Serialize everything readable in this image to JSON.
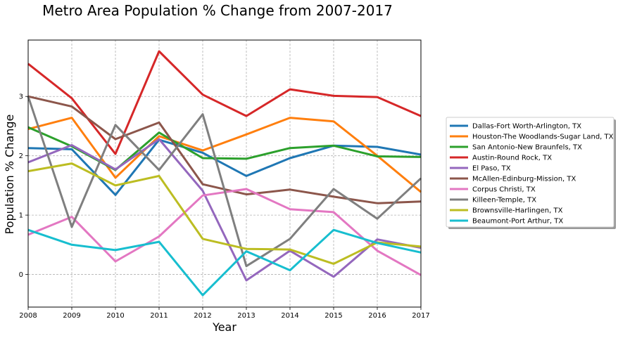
{
  "chart_data": {
    "type": "line",
    "title": "Metro Area Population % Change from 2007-2017",
    "xlabel": "Year",
    "ylabel": "Population % Change",
    "x": [
      2008,
      2009,
      2010,
      2011,
      2012,
      2013,
      2014,
      2015,
      2016,
      2017
    ],
    "x_ticks": [
      "2008",
      "2009",
      "2010",
      "2011",
      "2012",
      "2013",
      "2014",
      "2015",
      "2016",
      "2017"
    ],
    "y_ticks": [
      "0",
      "1",
      "2",
      "3"
    ],
    "xlim": [
      2008,
      2017
    ],
    "ylim": [
      -0.55,
      3.95
    ],
    "grid": true,
    "legend_position": "right",
    "series": [
      {
        "name": "Dallas-Fort Worth-Arlington, TX",
        "color": "#1f77b4",
        "values": [
          2.13,
          2.11,
          1.34,
          2.27,
          2.05,
          1.66,
          1.96,
          2.17,
          2.15,
          2.02
        ]
      },
      {
        "name": "Houston-The Woodlands-Sugar Land, TX",
        "color": "#ff7f0e",
        "values": [
          2.45,
          2.64,
          1.63,
          2.33,
          2.09,
          2.36,
          2.64,
          2.58,
          2.0,
          1.39
        ]
      },
      {
        "name": "San Antonio-New Braunfels, TX",
        "color": "#2ca02c",
        "values": [
          2.48,
          2.16,
          1.76,
          2.39,
          1.96,
          1.95,
          2.13,
          2.17,
          1.99,
          1.98
        ]
      },
      {
        "name": "Austin-Round Rock, TX",
        "color": "#d62728",
        "values": [
          3.55,
          2.97,
          2.03,
          3.76,
          3.03,
          2.67,
          3.12,
          3.01,
          2.99,
          2.67
        ]
      },
      {
        "name": "El Paso, TX",
        "color": "#9467bd",
        "values": [
          1.89,
          2.18,
          1.77,
          2.28,
          1.41,
          -0.1,
          0.4,
          -0.04,
          0.59,
          0.45
        ]
      },
      {
        "name": "McAllen-Edinburg-Mission, TX",
        "color": "#8c564b",
        "values": [
          3.0,
          2.83,
          2.28,
          2.56,
          1.52,
          1.35,
          1.43,
          1.31,
          1.2,
          1.23
        ]
      },
      {
        "name": "Corpus Christi, TX",
        "color": "#e377c2",
        "values": [
          0.67,
          0.97,
          0.22,
          0.64,
          1.33,
          1.44,
          1.1,
          1.05,
          0.4,
          -0.01
        ]
      },
      {
        "name": "Killeen-Temple, TX",
        "color": "#7f7f7f",
        "values": [
          3.0,
          0.8,
          2.52,
          1.76,
          2.7,
          0.14,
          0.6,
          1.44,
          0.94,
          1.62
        ]
      },
      {
        "name": "Brownsville-Harlingen, TX",
        "color": "#bcbd22",
        "values": [
          1.74,
          1.87,
          1.5,
          1.66,
          0.6,
          0.43,
          0.42,
          0.18,
          0.54,
          0.47
        ]
      },
      {
        "name": "Beaumont-Port Arthur, TX",
        "color": "#17becf",
        "values": [
          0.75,
          0.5,
          0.41,
          0.55,
          -0.35,
          0.39,
          0.07,
          0.75,
          0.53,
          0.37
        ]
      }
    ]
  }
}
